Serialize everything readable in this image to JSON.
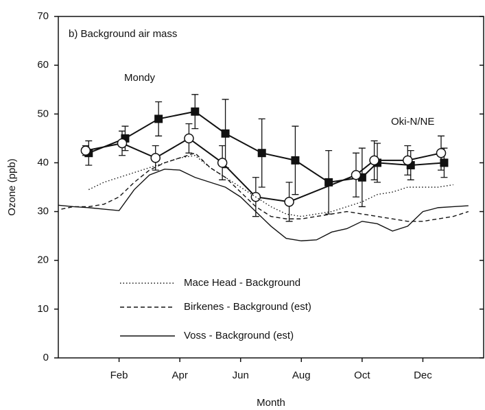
{
  "chart_data": {
    "type": "line",
    "annotation": "b) Background air mass",
    "x_label": "Month",
    "y_label": "Ozone (ppb)",
    "xlim": [
      0,
      14
    ],
    "xticks": [
      {
        "value": 2,
        "label": "Feb"
      },
      {
        "value": 4,
        "label": "Apr"
      },
      {
        "value": 6,
        "label": "Jun"
      },
      {
        "value": 8,
        "label": "Aug"
      },
      {
        "value": 10,
        "label": "Oct"
      },
      {
        "value": 12,
        "label": "Dec"
      }
    ],
    "ylim": [
      0,
      70
    ],
    "yticks": [
      0,
      10,
      20,
      30,
      40,
      50,
      60,
      70
    ],
    "series": [
      {
        "name": "Mondy",
        "color": "#111111",
        "marker": "square",
        "dash": "solid",
        "legend": false,
        "x": [
          1.0,
          2.2,
          3.3,
          4.5,
          5.5,
          6.7,
          7.8,
          8.9,
          10.0,
          10.5,
          11.6,
          12.7
        ],
        "values": [
          42,
          45,
          49,
          50.5,
          46,
          42,
          40.5,
          36,
          37,
          40,
          39.5,
          40
        ],
        "errors": [
          2.5,
          2.5,
          3.5,
          3.5,
          7,
          7,
          7,
          6.5,
          6,
          4,
          3,
          3
        ]
      },
      {
        "name": "Oki-N/NE",
        "color": "#111111",
        "marker": "circle",
        "dash": "solid",
        "legend": false,
        "x": [
          0.9,
          2.1,
          3.2,
          4.3,
          5.4,
          6.5,
          7.6,
          9.8,
          10.4,
          11.5,
          12.6
        ],
        "values": [
          42.5,
          44,
          41,
          45,
          40,
          33,
          32,
          37.5,
          40.5,
          40.5,
          42
        ],
        "errors": [
          1,
          2.5,
          2.5,
          3,
          3.5,
          4,
          4,
          4.5,
          4,
          3,
          3.5
        ]
      },
      {
        "name": "Mace Head - Background",
        "color": "#111111",
        "marker": "none",
        "dash": "dotted",
        "legend": true,
        "x": [
          1,
          1.5,
          2,
          2.5,
          3,
          3.5,
          4,
          4.5,
          5,
          5.5,
          6,
          6.5,
          7,
          7.5,
          8,
          8.5,
          9,
          9.5,
          10,
          10.5,
          11,
          11.5,
          12,
          12.5,
          13
        ],
        "values": [
          34.5,
          36,
          37,
          38,
          39,
          40,
          41,
          41.5,
          39,
          37,
          35,
          33,
          31,
          29.5,
          29,
          29.5,
          30,
          31,
          32,
          33.5,
          34,
          35,
          35,
          35,
          35.5
        ]
      },
      {
        "name": "Birkenes - Background (est)",
        "color": "#111111",
        "marker": "none",
        "dash": "dashed",
        "legend": true,
        "x": [
          0.1,
          0.5,
          1,
          1.5,
          2,
          2.5,
          3,
          3.5,
          4,
          4.5,
          5,
          5.5,
          6,
          6.5,
          7,
          7.5,
          8,
          8.5,
          9,
          9.5,
          10,
          10.5,
          11,
          11.5,
          12,
          12.5,
          13,
          13.5
        ],
        "values": [
          30.5,
          31,
          31,
          31.5,
          33,
          36,
          38.5,
          40,
          41,
          42,
          39,
          37,
          34,
          31,
          29,
          28.5,
          28.5,
          29,
          29.5,
          30,
          29.5,
          29,
          28.5,
          28,
          28,
          28.5,
          29,
          30
        ]
      },
      {
        "name": "Voss - Background (est)",
        "color": "#111111",
        "marker": "none",
        "dash": "solid",
        "legend": true,
        "x": [
          0,
          0.5,
          1,
          1.5,
          2,
          2.5,
          3,
          3.5,
          4,
          4.5,
          5,
          5.5,
          6,
          6.5,
          7,
          7.5,
          8,
          8.5,
          9,
          9.5,
          10,
          10.5,
          11,
          11.5,
          12,
          12.5,
          13,
          13.5
        ],
        "values": [
          31.3,
          31,
          30.8,
          30.5,
          30.2,
          34.5,
          37.5,
          38.7,
          38.5,
          37,
          36,
          35,
          33,
          30,
          27,
          24.5,
          24,
          24.2,
          25.8,
          26.5,
          28,
          27.5,
          26,
          27,
          30,
          30.8,
          31,
          31.2
        ]
      }
    ]
  }
}
